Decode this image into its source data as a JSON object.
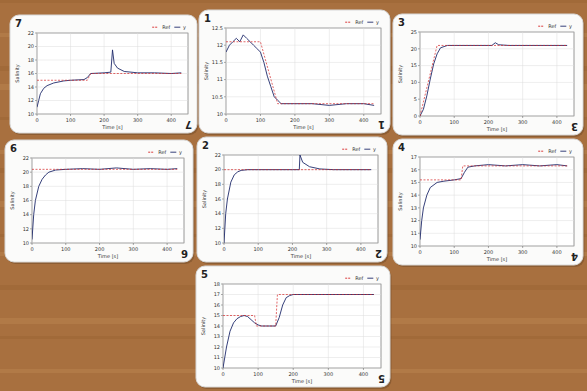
{
  "chart_data": [
    {
      "type": "line",
      "card_label": "7",
      "xlabel": "Time [s]",
      "ylabel": "Salinity",
      "xlim": [
        0,
        450
      ],
      "xticks": [
        0,
        100,
        200,
        300,
        400
      ],
      "ylim": [
        10,
        22
      ],
      "yticks": [
        10,
        12,
        14,
        16,
        18,
        20,
        22
      ],
      "grid": true,
      "legend": "upper right",
      "series": [
        {
          "name": "Ref",
          "color": "#d62728",
          "line_style": "dashed",
          "x": [
            0,
            150,
            160,
            430
          ],
          "values": [
            15,
            15,
            16,
            16
          ]
        },
        {
          "name": "y",
          "color": "#1f2a6b",
          "line_style": "solid",
          "x": [
            0,
            5,
            10,
            20,
            30,
            50,
            80,
            100,
            140,
            150,
            160,
            200,
            220,
            225,
            230,
            240,
            260,
            300,
            350,
            400,
            430
          ],
          "values": [
            11,
            12,
            13,
            13.8,
            14.2,
            14.6,
            14.9,
            15,
            15.1,
            15.4,
            16,
            16.1,
            16.2,
            19.5,
            17.5,
            16.8,
            16.3,
            16.1,
            16.1,
            16,
            16.1
          ]
        }
      ]
    },
    {
      "type": "line",
      "card_label": "1",
      "xlabel": "Time [s]",
      "ylabel": "Salinity",
      "xlim": [
        0,
        450
      ],
      "xticks": [
        0,
        100,
        200,
        300,
        400
      ],
      "ylim": [
        10,
        12.5
      ],
      "yticks": [
        10,
        10.5,
        11,
        11.5,
        12,
        12.5
      ],
      "grid": true,
      "legend": "upper right",
      "series": [
        {
          "name": "Ref",
          "color": "#d62728",
          "line_style": "dashed",
          "x": [
            0,
            100,
            150,
            430
          ],
          "values": [
            12.1,
            12.1,
            10.3,
            10.3
          ]
        },
        {
          "name": "y",
          "color": "#1f2a6b",
          "line_style": "solid",
          "x": [
            0,
            10,
            20,
            30,
            40,
            50,
            60,
            70,
            80,
            90,
            100,
            110,
            120,
            130,
            140,
            150,
            160,
            200,
            250,
            300,
            350,
            400,
            430
          ],
          "values": [
            11.8,
            12,
            12.1,
            12.2,
            12.1,
            12.3,
            12.2,
            12.1,
            12,
            11.9,
            11.8,
            11.5,
            11.1,
            10.8,
            10.5,
            10.4,
            10.3,
            10.3,
            10.3,
            10.25,
            10.3,
            10.3,
            10.25
          ]
        }
      ]
    },
    {
      "type": "line",
      "card_label": "3",
      "xlabel": "Time [s]",
      "ylabel": "Salinity",
      "xlim": [
        0,
        450
      ],
      "xticks": [
        0,
        100,
        200,
        300,
        400
      ],
      "ylim": [
        0,
        25
      ],
      "yticks": [
        0,
        5,
        10,
        15,
        20,
        25
      ],
      "grid": true,
      "legend": "upper right",
      "series": [
        {
          "name": "Ref",
          "color": "#d62728",
          "line_style": "dashed",
          "x": [
            0,
            50,
            430
          ],
          "values": [
            0,
            21,
            21
          ]
        },
        {
          "name": "y",
          "color": "#1f2a6b",
          "line_style": "solid",
          "x": [
            0,
            10,
            20,
            30,
            40,
            50,
            60,
            80,
            100,
            200,
            210,
            220,
            230,
            260,
            300,
            430
          ],
          "values": [
            0,
            2,
            6,
            11,
            15.5,
            18.5,
            20.3,
            21,
            21,
            21,
            21,
            21.8,
            21.2,
            21,
            21,
            21
          ]
        }
      ]
    },
    {
      "type": "line",
      "card_label": "6",
      "xlabel": "Time [s]",
      "ylabel": "Salinity",
      "xlim": [
        0,
        450
      ],
      "xticks": [
        0,
        100,
        200,
        300,
        400
      ],
      "ylim": [
        10,
        22
      ],
      "yticks": [
        10,
        12,
        14,
        16,
        18,
        20,
        22
      ],
      "grid": true,
      "legend": "upper right",
      "series": [
        {
          "name": "Ref",
          "color": "#d62728",
          "line_style": "dashed",
          "x": [
            0,
            430
          ],
          "values": [
            20.4,
            20.4
          ]
        },
        {
          "name": "y",
          "color": "#1f2a6b",
          "line_style": "solid",
          "x": [
            0,
            5,
            10,
            20,
            30,
            40,
            50,
            70,
            100,
            150,
            200,
            250,
            300,
            350,
            400,
            430
          ],
          "values": [
            10.5,
            14,
            16,
            18,
            19,
            19.6,
            20,
            20.3,
            20.4,
            20.5,
            20.4,
            20.6,
            20.4,
            20.5,
            20.4,
            20.5
          ]
        }
      ]
    },
    {
      "type": "line",
      "card_label": "2",
      "xlabel": "Time [s]",
      "ylabel": "Salinity",
      "xlim": [
        0,
        450
      ],
      "xticks": [
        0,
        100,
        200,
        300,
        400
      ],
      "ylim": [
        10,
        22
      ],
      "yticks": [
        10,
        12,
        14,
        16,
        18,
        20,
        22
      ],
      "grid": true,
      "legend": "upper right",
      "series": [
        {
          "name": "Ref",
          "color": "#d62728",
          "line_style": "dashed",
          "x": [
            0,
            430
          ],
          "values": [
            20,
            20
          ]
        },
        {
          "name": "y",
          "color": "#1f2a6b",
          "line_style": "solid",
          "x": [
            0,
            5,
            10,
            20,
            30,
            40,
            50,
            70,
            100,
            200,
            220,
            222,
            230,
            250,
            280,
            320,
            430
          ],
          "values": [
            10,
            14,
            16,
            18.3,
            19.3,
            19.7,
            19.9,
            20,
            20,
            20,
            20,
            22,
            21,
            20.4,
            20.1,
            20,
            20
          ]
        }
      ]
    },
    {
      "type": "line",
      "card_label": "4",
      "xlabel": "Time [s]",
      "ylabel": "Salinity",
      "xlim": [
        0,
        450
      ],
      "xticks": [
        0,
        100,
        200,
        300,
        400
      ],
      "ylim": [
        10,
        17
      ],
      "yticks": [
        10,
        11,
        12,
        13,
        14,
        15,
        16,
        17
      ],
      "grid": true,
      "legend": "upper right",
      "series": [
        {
          "name": "Ref",
          "color": "#d62728",
          "line_style": "dashed",
          "x": [
            0,
            120,
            125,
            430
          ],
          "values": [
            15.2,
            15.2,
            16.3,
            16.3
          ]
        },
        {
          "name": "y",
          "color": "#1f2a6b",
          "line_style": "solid",
          "x": [
            0,
            5,
            10,
            20,
            30,
            50,
            70,
            100,
            120,
            130,
            140,
            160,
            200,
            250,
            300,
            350,
            400,
            430
          ],
          "values": [
            10.5,
            12,
            13,
            14,
            14.6,
            15,
            15.1,
            15.2,
            15.3,
            15.8,
            16.2,
            16.3,
            16.4,
            16.3,
            16.4,
            16.3,
            16.4,
            16.3
          ]
        }
      ]
    },
    {
      "type": "line",
      "card_label": "5",
      "xlabel": "Time [s]",
      "ylabel": "Salinity",
      "xlim": [
        0,
        450
      ],
      "xticks": [
        0,
        100,
        200,
        300,
        400
      ],
      "ylim": [
        10,
        18
      ],
      "yticks": [
        10,
        11,
        12,
        13,
        14,
        15,
        16,
        17,
        18
      ],
      "grid": true,
      "legend": "upper right",
      "series": [
        {
          "name": "Ref",
          "color": "#d62728",
          "line_style": "dashed",
          "x": [
            0,
            90,
            95,
            150,
            155,
            430
          ],
          "values": [
            15,
            15,
            14,
            14,
            17,
            17
          ]
        },
        {
          "name": "y",
          "color": "#1f2a6b",
          "line_style": "solid",
          "x": [
            0,
            10,
            20,
            30,
            40,
            50,
            60,
            70,
            80,
            90,
            100,
            110,
            150,
            160,
            170,
            180,
            190,
            200,
            430
          ],
          "values": [
            10,
            12,
            13.5,
            14.3,
            14.7,
            14.9,
            15,
            14.9,
            14.6,
            14.3,
            14.1,
            14,
            14,
            14.8,
            16,
            16.7,
            16.9,
            17,
            17
          ]
        }
      ]
    }
  ]
}
